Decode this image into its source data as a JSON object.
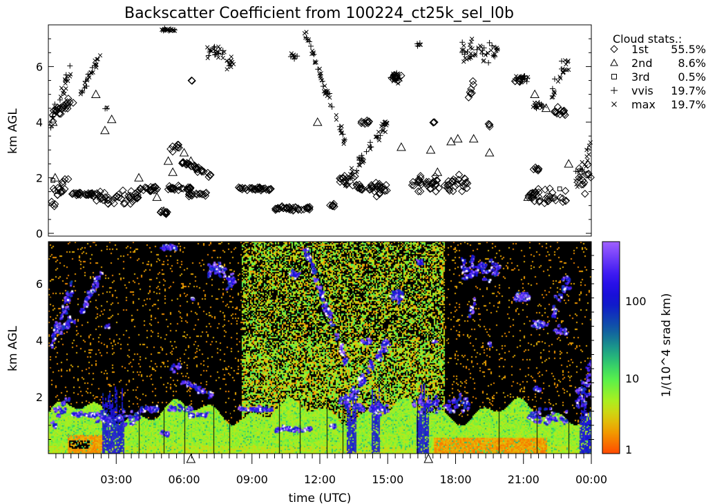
{
  "chart_data": [
    {
      "type": "scatter",
      "title": "Backscatter Coefficient from 100224_ct25k_sel_l0b",
      "ylabel": "km AGL",
      "ylim": [
        0,
        7.5
      ],
      "xlim_hours": [
        0,
        24
      ],
      "yticks": [
        "0",
        "2",
        "4",
        "6"
      ],
      "legend": {
        "position": "right",
        "title": "Cloud stats.:",
        "entries": [
          {
            "symbol": "diamond",
            "label": "1st",
            "value": "55.5%"
          },
          {
            "symbol": "triangle",
            "label": "2nd",
            "value": "8.6%"
          },
          {
            "symbol": "square",
            "label": "3rd",
            "value": "0.5%"
          },
          {
            "symbol": "plus",
            "label": "vvis",
            "value": "19.7%"
          },
          {
            "symbol": "x",
            "label": "max",
            "value": "19.7%"
          }
        ]
      },
      "series": {
        "first_clusters_hours_km": [
          [
            0.05,
            0.9,
            1.0,
            2.0,
            0.6
          ],
          [
            0.1,
            1.2,
            4.2,
            4.8,
            0.3
          ],
          [
            1.0,
            2.3,
            1.4,
            1.4,
            0.1
          ],
          [
            2.1,
            4.0,
            1.3,
            1.3,
            0.35
          ],
          [
            4.0,
            4.9,
            1.6,
            1.6,
            0.15
          ],
          [
            4.9,
            5.3,
            0.75,
            0.75,
            0.1
          ],
          [
            5.2,
            6.3,
            1.6,
            1.6,
            0.15
          ],
          [
            5.4,
            5.8,
            3.1,
            3.1,
            0.2
          ],
          [
            6.3,
            6.4,
            5.5,
            5.5,
            0.05
          ],
          [
            5.9,
            7.2,
            2.6,
            2.1,
            0.15
          ],
          [
            6.2,
            7.0,
            1.4,
            1.4,
            0.1
          ],
          [
            8.4,
            9.9,
            1.6,
            1.6,
            0.1
          ],
          [
            9.9,
            11.6,
            0.9,
            0.9,
            0.1
          ],
          [
            12.4,
            12.7,
            1.0,
            1.0,
            0.1
          ],
          [
            12.8,
            15.0,
            2.0,
            1.5,
            0.35
          ],
          [
            13.8,
            14.2,
            4.0,
            4.0,
            0.1
          ],
          [
            15.1,
            15.6,
            5.6,
            5.6,
            0.15
          ],
          [
            16.0,
            18.6,
            1.8,
            1.8,
            0.4
          ],
          [
            17.0,
            17.1,
            4.0,
            4.0,
            0.05
          ],
          [
            18.5,
            18.8,
            4.6,
            5.5,
            0.3
          ],
          [
            19.4,
            19.6,
            3.9,
            3.9,
            0.1
          ],
          [
            20.6,
            21.0,
            5.5,
            5.5,
            0.1
          ],
          [
            21.2,
            22.9,
            1.3,
            1.3,
            0.4
          ],
          [
            21.4,
            21.7,
            2.3,
            2.3,
            0.15
          ],
          [
            22.3,
            22.9,
            4.4,
            4.4,
            0.2
          ],
          [
            23.4,
            24.0,
            2.0,
            2.0,
            0.8
          ]
        ],
        "second_points_hours_km": [
          [
            0.2,
            4.0
          ],
          [
            2.1,
            5.0
          ],
          [
            2.5,
            3.7
          ],
          [
            5.5,
            2.2
          ],
          [
            6.0,
            2.9
          ],
          [
            6.3,
            2.6
          ],
          [
            5.1,
            0.8
          ],
          [
            4.8,
            1.3
          ],
          [
            19.5,
            2.9
          ],
          [
            21.2,
            1.3
          ],
          [
            21.4,
            1.4
          ],
          [
            21.5,
            5.0
          ],
          [
            23.0,
            2.5
          ],
          [
            22.0,
            4.5
          ],
          [
            11.9,
            4.0
          ],
          [
            18.8,
            3.4
          ],
          [
            15.6,
            3.1
          ],
          [
            16.9,
            3.0
          ],
          [
            17.2,
            2.2
          ],
          [
            17.8,
            3.3
          ],
          [
            18.1,
            3.4
          ],
          [
            4.0,
            2.0
          ],
          [
            5.3,
            2.6
          ],
          [
            2.8,
            4.1
          ],
          [
            0.3,
            2.0
          ]
        ],
        "third_points_hours_km": [
          [
            0.2,
            1.9
          ],
          [
            0.4,
            1.5
          ],
          [
            22.6,
            1.6
          ]
        ],
        "max_clusters_hours_km": [
          [
            0.1,
            1.0,
            4.0,
            5.8,
            0.5
          ],
          [
            1.4,
            2.3,
            5.0,
            6.4,
            0.3
          ],
          [
            2.5,
            2.6,
            4.5,
            4.5,
            0.1
          ],
          [
            4.9,
            5.6,
            7.3,
            7.3,
            0.1
          ],
          [
            7.0,
            7.8,
            6.5,
            6.5,
            0.4
          ],
          [
            7.8,
            8.2,
            6.1,
            6.1,
            0.4
          ],
          [
            10.7,
            11.0,
            6.4,
            6.4,
            0.2
          ],
          [
            11.3,
            13.1,
            7.3,
            3.3,
            0.3
          ],
          [
            13.1,
            15.0,
            1.8,
            4.0,
            0.4
          ],
          [
            15.1,
            15.6,
            5.6,
            5.6,
            0.3
          ],
          [
            16.3,
            16.5,
            6.8,
            6.8,
            0.1
          ],
          [
            18.2,
            19.9,
            6.5,
            6.5,
            0.6
          ],
          [
            20.6,
            21.2,
            5.6,
            5.6,
            0.2
          ],
          [
            21.4,
            22.0,
            4.6,
            4.6,
            0.2
          ],
          [
            22.2,
            23.0,
            5.0,
            6.3,
            0.5
          ],
          [
            23.3,
            24.0,
            1.9,
            3.0,
            0.5
          ]
        ]
      }
    },
    {
      "type": "heatmap",
      "xlabel": "time (UTC)",
      "ylabel": "km AGL",
      "ylim": [
        0,
        7.5
      ],
      "xticks": [
        "03:00",
        "06:00",
        "09:00",
        "12:00",
        "15:00",
        "18:00",
        "21:00",
        "00:00"
      ],
      "yticks": [
        "2",
        "4",
        "6"
      ],
      "marker_hours": [
        6.3,
        16.8
      ],
      "colorbar": {
        "label": "1/(10^4 srad km)",
        "scale": "log",
        "range": [
          1,
          600
        ],
        "ticks": [
          "1",
          "10",
          "100"
        ],
        "colors": [
          "#ff4a00",
          "#f0a000",
          "#d8d010",
          "#a8f020",
          "#50f050",
          "#20b080",
          "#1060a0",
          "#1010d0",
          "#3010f0",
          "#a060ff"
        ]
      }
    }
  ]
}
